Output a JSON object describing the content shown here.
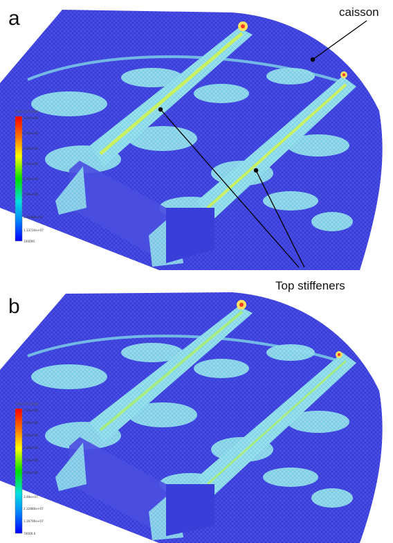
{
  "panels": [
    {
      "label": "a",
      "legend": {
        "title": "SNEG  RECORNE",
        "ticks": [
          "3.20e+08",
          "2.90e+08",
          "2.65e+08",
          "2.40e+08",
          "2.10e+08",
          "1.60e+08",
          "2.26488e+07",
          "1.13734e+07",
          "100000."
        ]
      }
    },
    {
      "label": "b",
      "legend": {
        "title": "SNEG  RECORNE",
        "ticks": [
          "3.20e+08",
          "2.90e+08",
          "2.65e+08",
          "2.40e+08",
          "2.10e+08",
          "1.60e+08",
          "3.49e+07",
          "2.32880e+07",
          "1.16790e+07",
          "70000.0"
        ]
      }
    }
  ],
  "annotations": {
    "caisson": "caisson",
    "top_stiffeners": "Top stiffeners"
  },
  "colors": {
    "mesh_blue": "#3a3ed8",
    "low_stress": "#7fd6e6",
    "mid_stress": "#c8f060",
    "high_stress": "#ff3a20",
    "legend_top": "#ff0000",
    "legend_bottom": "#0000ff"
  }
}
